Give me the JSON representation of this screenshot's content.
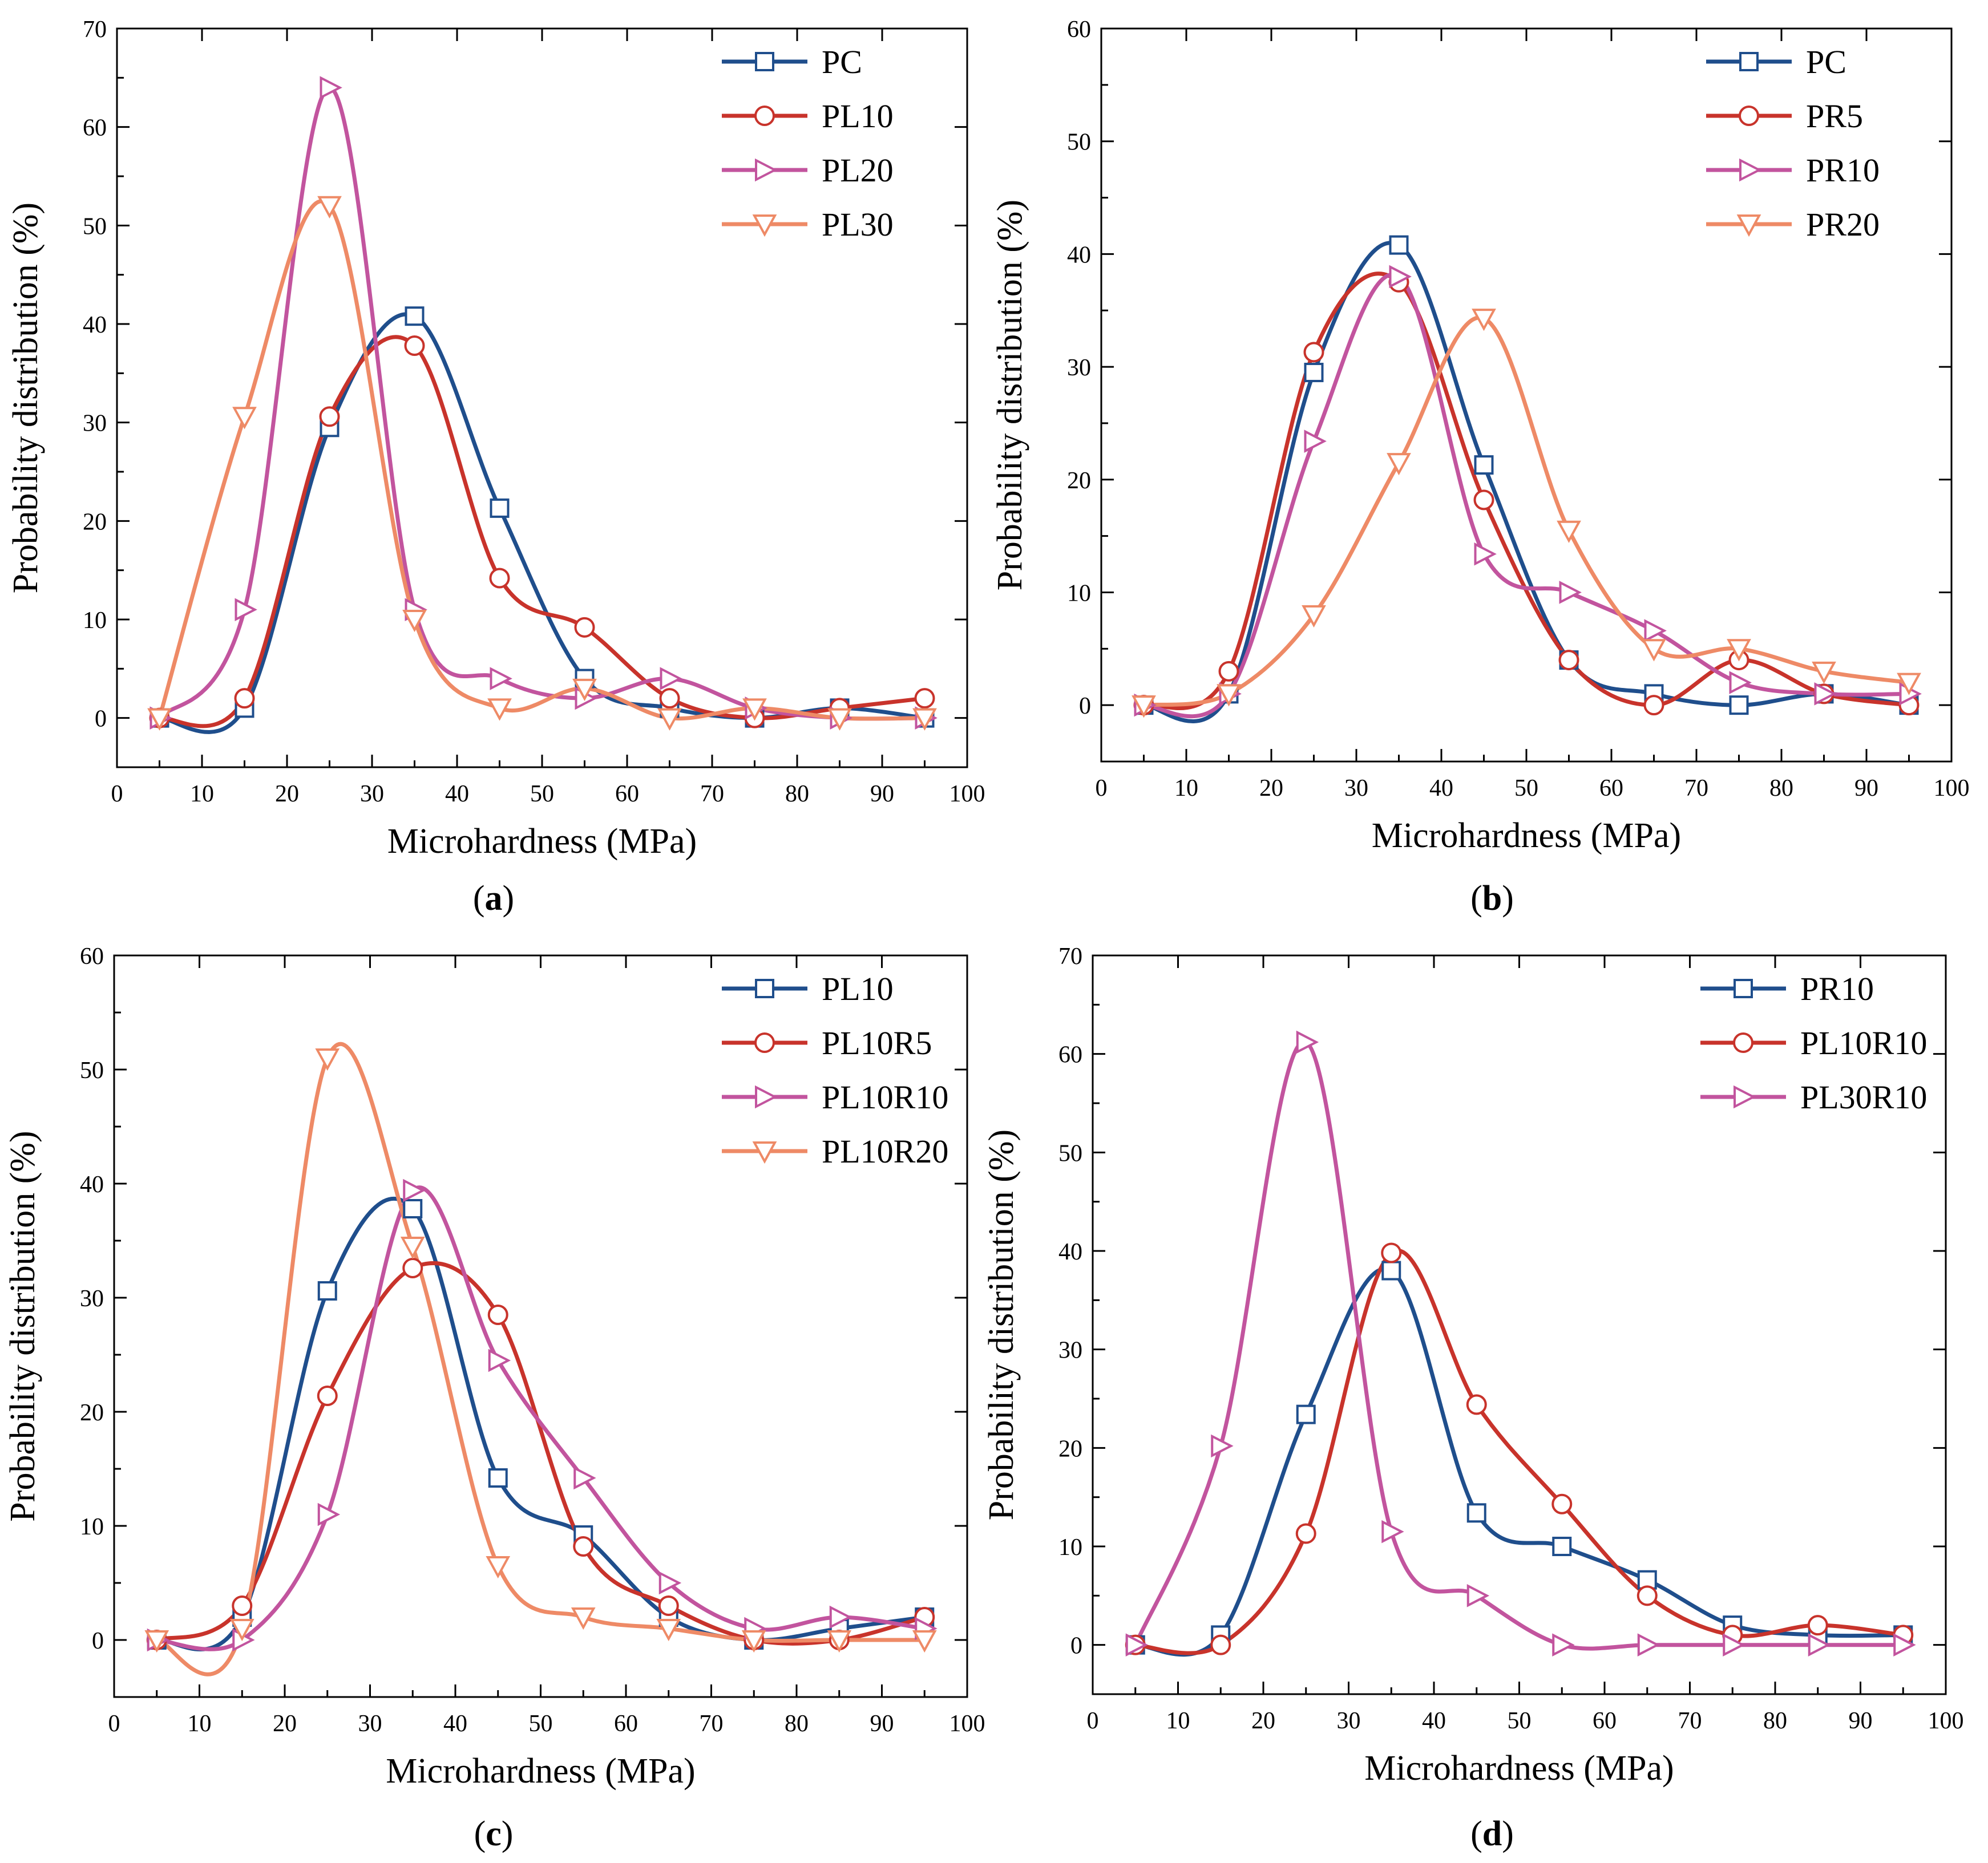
{
  "colors": {
    "blue": "#1f4e8c",
    "red": "#c8332b",
    "magenta": "#c2549e",
    "orange": "#ee8a66"
  },
  "chart_data": [
    {
      "type": "line",
      "label": "a",
      "xlabel": "Microhardness (MPa)",
      "ylabel": "Probability distribution (%)",
      "xlim": [
        0,
        100
      ],
      "ylim": [
        -5,
        70
      ],
      "xticks": [
        0,
        10,
        20,
        30,
        40,
        50,
        60,
        70,
        80,
        90,
        100
      ],
      "yticks": [
        0,
        10,
        20,
        30,
        40,
        50,
        60,
        70
      ],
      "legend_position": "top-right",
      "x": [
        5,
        15,
        25,
        35,
        45,
        55,
        65,
        75,
        85,
        95
      ],
      "series": [
        {
          "name": "PC",
          "marker": "square",
          "color": "#1f4e8c",
          "values": [
            0,
            1,
            29.5,
            40.8,
            21.3,
            4,
            1,
            0,
            1,
            0
          ]
        },
        {
          "name": "PL10",
          "marker": "circle",
          "color": "#c8332b",
          "values": [
            0,
            2,
            30.6,
            37.8,
            14.2,
            9.2,
            2,
            0,
            1,
            2
          ]
        },
        {
          "name": "PL20",
          "marker": "triangle-right",
          "color": "#c2549e",
          "values": [
            0,
            11,
            64,
            11,
            4,
            2,
            4,
            1,
            0,
            0
          ]
        },
        {
          "name": "PL30",
          "marker": "triangle-down",
          "color": "#ee8a66",
          "values": [
            0,
            30.6,
            52,
            10,
            1,
            3,
            0,
            1,
            0,
            0
          ]
        }
      ]
    },
    {
      "type": "line",
      "label": "b",
      "xlabel": "Microhardness (MPa)",
      "ylabel": "Probability distribution (%)",
      "xlim": [
        0,
        100
      ],
      "ylim": [
        -5,
        60
      ],
      "xticks": [
        0,
        10,
        20,
        30,
        40,
        50,
        60,
        70,
        80,
        90,
        100
      ],
      "yticks": [
        0,
        10,
        20,
        30,
        40,
        50,
        60
      ],
      "legend_position": "top-right",
      "x": [
        5,
        15,
        25,
        35,
        45,
        55,
        65,
        75,
        85,
        95
      ],
      "series": [
        {
          "name": "PC",
          "marker": "square",
          "color": "#1f4e8c",
          "values": [
            0,
            1,
            29.5,
            40.8,
            21.3,
            4,
            1,
            0,
            1,
            0
          ]
        },
        {
          "name": "PR5",
          "marker": "circle",
          "color": "#c8332b",
          "values": [
            0,
            3,
            31.3,
            37.5,
            18.2,
            4,
            0,
            4,
            1,
            0
          ]
        },
        {
          "name": "PR10",
          "marker": "triangle-right",
          "color": "#c2549e",
          "values": [
            0,
            1,
            23.4,
            38,
            13.4,
            10,
            6.6,
            2,
            1,
            1
          ]
        },
        {
          "name": "PR20",
          "marker": "triangle-down",
          "color": "#ee8a66",
          "values": [
            0,
            1,
            8,
            21.5,
            34.3,
            15.5,
            5,
            5,
            3,
            2
          ]
        }
      ]
    },
    {
      "type": "line",
      "label": "c",
      "xlabel": "Microhardness (MPa)",
      "ylabel": "Probability distribution (%)",
      "xlim": [
        0,
        100
      ],
      "ylim": [
        -5,
        60
      ],
      "xticks": [
        0,
        10,
        20,
        30,
        40,
        50,
        60,
        70,
        80,
        90,
        100
      ],
      "yticks": [
        0,
        10,
        20,
        30,
        40,
        50,
        60
      ],
      "legend_position": "top-right",
      "x": [
        5,
        15,
        25,
        35,
        45,
        55,
        65,
        75,
        85,
        95
      ],
      "series": [
        {
          "name": "PL10",
          "marker": "square",
          "color": "#1f4e8c",
          "values": [
            0,
            2,
            30.6,
            37.8,
            14.2,
            9.2,
            2,
            0,
            1,
            2
          ]
        },
        {
          "name": "PL10R5",
          "marker": "circle",
          "color": "#c8332b",
          "values": [
            0,
            3,
            21.4,
            32.6,
            28.5,
            8.2,
            3,
            0,
            0,
            2
          ]
        },
        {
          "name": "PL10R10",
          "marker": "triangle-right",
          "color": "#c2549e",
          "values": [
            0,
            0,
            11,
            39.4,
            24.5,
            14.2,
            5,
            1,
            2,
            1
          ]
        },
        {
          "name": "PL10R20",
          "marker": "triangle-down",
          "color": "#ee8a66",
          "values": [
            0,
            1,
            51,
            34.5,
            6.5,
            2,
            1,
            0,
            0,
            0
          ]
        }
      ]
    },
    {
      "type": "line",
      "label": "d",
      "xlabel": "Microhardness (MPa)",
      "ylabel": "Probability distribution (%)",
      "xlim": [
        0,
        100
      ],
      "ylim": [
        -5,
        70
      ],
      "xticks": [
        0,
        10,
        20,
        30,
        40,
        50,
        60,
        70,
        80,
        90,
        100
      ],
      "yticks": [
        0,
        10,
        20,
        30,
        40,
        50,
        60,
        70
      ],
      "legend_position": "top-right",
      "x": [
        5,
        15,
        25,
        35,
        45,
        55,
        65,
        75,
        85,
        95
      ],
      "series": [
        {
          "name": "PR10",
          "marker": "square",
          "color": "#1f4e8c",
          "values": [
            0,
            1,
            23.4,
            38,
            13.4,
            10,
            6.6,
            2,
            1,
            1
          ]
        },
        {
          "name": "PL10R10",
          "marker": "circle",
          "color": "#c8332b",
          "values": [
            0,
            0,
            11.3,
            39.8,
            24.4,
            14.3,
            5,
            1,
            2,
            1
          ]
        },
        {
          "name": "PL30R10",
          "marker": "triangle-right",
          "color": "#c2549e",
          "values": [
            0,
            20.2,
            61.2,
            11.5,
            5,
            0,
            0,
            0,
            0,
            0
          ]
        }
      ]
    }
  ]
}
